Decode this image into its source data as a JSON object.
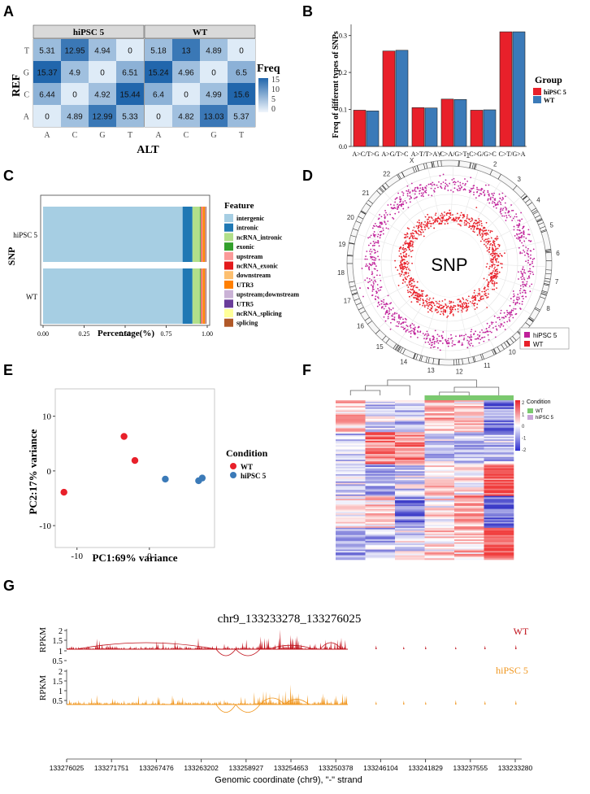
{
  "panels": {
    "a": "A",
    "b": "B",
    "c": "C",
    "d": "D",
    "e": "E",
    "f": "F",
    "g": "G"
  },
  "chart_data": [
    {
      "id": "A",
      "type": "heatmap",
      "facets": [
        "hiPSC 5",
        "WT"
      ],
      "rows": [
        "T",
        "G",
        "C",
        "A"
      ],
      "cols": [
        "A",
        "C",
        "G",
        "T"
      ],
      "values": {
        "hiPSC 5": [
          [
            5.31,
            12.95,
            4.94,
            0
          ],
          [
            15.37,
            4.9,
            0,
            6.51
          ],
          [
            6.44,
            0,
            4.92,
            15.44
          ],
          [
            0,
            4.89,
            12.99,
            5.33
          ]
        ],
        "WT": [
          [
            5.18,
            13,
            4.89,
            0
          ],
          [
            15.24,
            4.96,
            0,
            6.5
          ],
          [
            6.4,
            0,
            4.99,
            15.6
          ],
          [
            0,
            4.82,
            13.03,
            5.37
          ]
        ]
      },
      "labels": {
        "hiPSC 5": [
          [
            "5.31",
            "12.95",
            "4.94",
            "0"
          ],
          [
            "15.37",
            "4.9",
            "0",
            "6.51"
          ],
          [
            "6.44",
            "0",
            "4.92",
            "15.44"
          ],
          [
            "0",
            "4.89",
            "12.99",
            "5.33"
          ]
        ],
        "WT": [
          [
            "5.18",
            "13",
            "4.89",
            "0"
          ],
          [
            "15.24",
            "4.96",
            "0",
            "6.5"
          ],
          [
            "6.4",
            "0",
            "4.99",
            "15.6"
          ],
          [
            "0",
            "4.82",
            "13.03",
            "5.37"
          ]
        ]
      },
      "xlabel": "ALT",
      "ylabel": "REF",
      "legend_title": "Freq",
      "legend_ticks": [
        "15",
        "10",
        "5",
        "0"
      ],
      "legend_range": [
        0,
        15
      ]
    },
    {
      "id": "B",
      "type": "bar",
      "categories": [
        "A>C/T>G",
        "A>G/T>C",
        "A>T/T>A",
        "C>A/G>T",
        "C>G/G>C",
        "C>T/G>A"
      ],
      "series": [
        {
          "name": "hiPSC 5",
          "color": "#e8202a",
          "values": [
            0.098,
            0.258,
            0.105,
            0.128,
            0.098,
            0.31
          ]
        },
        {
          "name": "WT",
          "color": "#3b7ab8",
          "values": [
            0.096,
            0.26,
            0.104,
            0.127,
            0.099,
            0.31
          ]
        }
      ],
      "ylabel": "Freq of different types of SNPs",
      "ylim": [
        0,
        0.33
      ],
      "yticks": [
        "0.0",
        "0.1",
        "0.2",
        "0.3"
      ],
      "legend_title": "Group"
    },
    {
      "id": "C",
      "type": "bar",
      "orientation": "horizontal-stacked",
      "categories": [
        "hiPSC 5",
        "WT"
      ],
      "features": [
        "intergenic",
        "intronic",
        "ncRNA_intronic",
        "exonic",
        "upstream",
        "ncRNA_exonic",
        "downstream",
        "UTR3",
        "upstream;downstream",
        "UTR5",
        "ncRNA_splicing",
        "splicing"
      ],
      "colors": [
        "#a6cee3",
        "#1f78b4",
        "#b2df8a",
        "#33a02c",
        "#fb9a99",
        "#e31a1c",
        "#fdbf6f",
        "#ff7f00",
        "#cab2d6",
        "#6a3d9a",
        "#ffff99",
        "#b15928"
      ],
      "values": {
        "hiPSC 5": [
          0.85,
          0.06,
          0.045,
          0.005,
          0.006,
          0.004,
          0.005,
          0.012,
          0.003,
          0.002,
          0.001,
          0.001
        ],
        "WT": [
          0.85,
          0.06,
          0.045,
          0.005,
          0.006,
          0.004,
          0.005,
          0.012,
          0.003,
          0.002,
          0.001,
          0.001
        ]
      },
      "xlabel": "Percentage(%)",
      "ylabel": "SNP",
      "legend_title": "Feature",
      "xticks": [
        "0.00",
        "0.25",
        "0.50",
        "0.75",
        "1.00"
      ]
    },
    {
      "id": "D",
      "type": "scatter",
      "kind": "circos",
      "center_label": "SNP",
      "chromosomes": [
        "1",
        "2",
        "3",
        "4",
        "5",
        "6",
        "7",
        "8",
        "9",
        "10",
        "11",
        "12",
        "13",
        "14",
        "15",
        "16",
        "17",
        "18",
        "19",
        "20",
        "21",
        "22",
        "X",
        "Y"
      ],
      "legend": [
        {
          "name": "hiPSC 5",
          "color": "#c0219a"
        },
        {
          "name": "WT",
          "color": "#e8202a"
        }
      ]
    },
    {
      "id": "E",
      "type": "scatter",
      "series": [
        {
          "name": "WT",
          "color": "#e8202a",
          "points": [
            [
              -11.8,
              -3.9
            ],
            [
              -3.5,
              6.3
            ],
            [
              -2,
              1.9
            ]
          ]
        },
        {
          "name": "hiPSC 5",
          "color": "#3b7ab8",
          "points": [
            [
              2.2,
              -1.5
            ],
            [
              6.8,
              -1.8
            ],
            [
              7.3,
              -1.3
            ]
          ]
        }
      ],
      "xlabel": "PC1:69% variance",
      "ylabel": "PC2:17% variance",
      "xlim": [
        -13,
        9
      ],
      "ylim": [
        -14,
        15
      ],
      "xticks": [
        -10,
        0
      ],
      "yticks": [
        -10,
        0,
        10
      ],
      "legend_title": "Condition"
    },
    {
      "id": "F",
      "type": "heatmap",
      "columns": 6,
      "condition_legend_title": "Condition",
      "conditions": [
        {
          "name": "WT",
          "color": "#7bc96f"
        },
        {
          "name": "hiPSC 5",
          "color": "#c9a5d8"
        }
      ],
      "scale_ticks": [
        "2",
        "1",
        "0",
        "-1",
        "-2"
      ]
    },
    {
      "id": "G",
      "type": "area",
      "title": "chr9_133233278_133276025",
      "tracks": [
        {
          "name": "WT",
          "color": "#c0101a"
        },
        {
          "name": "hiPSC 5",
          "color": "#f0961e"
        }
      ],
      "ylabel": "RPKM",
      "yticks": [
        "2",
        "1.5",
        "1",
        "0.5"
      ],
      "xticks": [
        "133276025",
        "133271751",
        "133267476",
        "133263202",
        "133258927",
        "133254653",
        "133250378",
        "133246104",
        "133241829",
        "133237555",
        "133233280"
      ],
      "xlabel": "Genomic coordinate (chr9), \"-\" strand"
    }
  ]
}
